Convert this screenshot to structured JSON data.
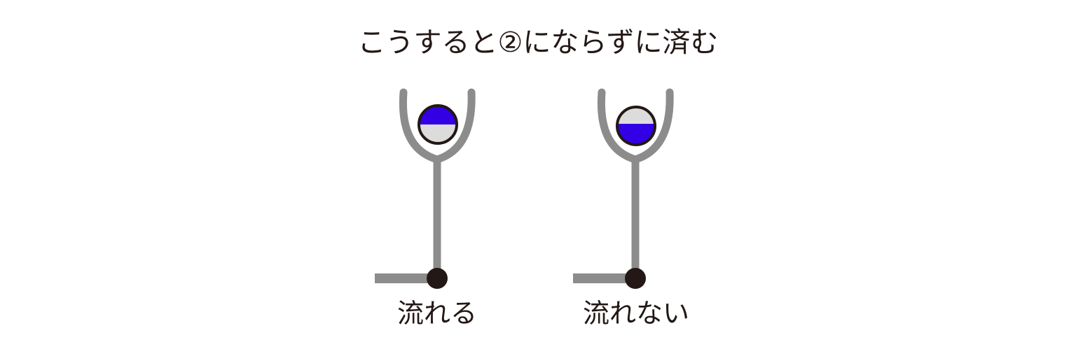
{
  "title": "こうすると②にならずに済む",
  "figures": [
    {
      "label": "流れる",
      "fill_top": "#3300e6",
      "fill_bottom": "#dcdcdc"
    },
    {
      "label": "流れない",
      "fill_top": "#dcdcdc",
      "fill_bottom": "#3300e6"
    }
  ],
  "colors": {
    "pipe": "#8c8c8c",
    "outline": "#231815",
    "text": "#231815"
  }
}
